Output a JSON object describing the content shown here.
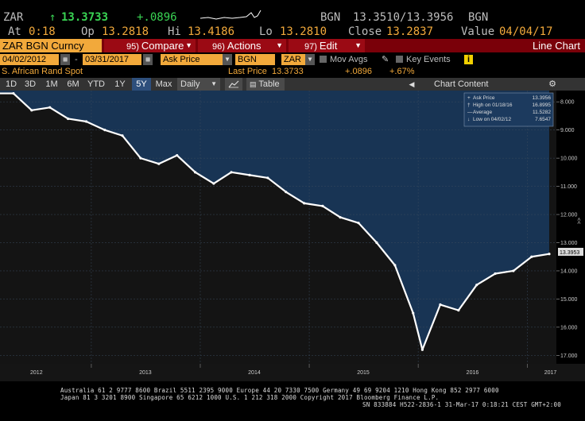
{
  "ticker": {
    "symbol": "ZAR",
    "arrow": "↑",
    "last": "13.3733",
    "change": "+.0896",
    "source_label": "BGN",
    "bid_ask": "13.3510/13.3956",
    "source_label2": "BGN",
    "at_label": "At",
    "at_value": "0:18",
    "op_label": "Op",
    "op_value": "13.2818",
    "hi_label": "Hi",
    "hi_value": "13.4186",
    "lo_label": "Lo",
    "lo_value": "13.2810",
    "close_label": "Close",
    "close_value": "13.2837",
    "value_label": "Value",
    "value_date": "04/04/17"
  },
  "function_bar": {
    "security": "ZAR BGN Curncy",
    "compare_num": "95)",
    "compare_label": "Compare",
    "actions_num": "96)",
    "actions_label": "Actions",
    "edit_num": "97)",
    "edit_label": "Edit",
    "title": "Line Chart"
  },
  "params": {
    "start_date": "04/02/2012",
    "end_date": "03/31/2017",
    "field": "Ask Price",
    "source": "BGN",
    "currency": "ZAR",
    "mov_avgs_label": "Mov Avgs",
    "key_events_label": "Key Events",
    "info_badge": "i"
  },
  "info_row": {
    "security_name": "S. African Rand Spot",
    "last_price_label": "Last Price",
    "last_price": "13.3733",
    "change": "+.0896",
    "pct_change": "+.67%"
  },
  "range_bar": {
    "ranges": [
      "1D",
      "3D",
      "1M",
      "6M",
      "YTD",
      "1Y",
      "5Y",
      "Max"
    ],
    "selected": "5Y",
    "period": "Daily",
    "table_label": "Table",
    "chart_content_label": "Chart Content"
  },
  "colors": {
    "amber": "#f2a93b",
    "red_bar": "#7a0009",
    "chart_upper_bg": "#183454",
    "chart_lower_bg": "#141414",
    "line": "#ffffff",
    "up_green": "#39d353"
  },
  "chart_data": {
    "type": "line",
    "ylabel": "",
    "ylim": [
      17.3,
      7.6
    ],
    "y_inverted": true,
    "y_ticks": [
      "8.000",
      "9.000",
      "10.000",
      "11.000",
      "12.000",
      "13.000",
      "14.000",
      "15.000",
      "16.000",
      "17.000"
    ],
    "x_ticks": [
      "2012",
      "2013",
      "2014",
      "2015",
      "2016",
      "2017"
    ],
    "last_value_tag": "13.3953",
    "side_marker": "<<",
    "legend": [
      {
        "label": "Ask Price",
        "value": "13.3956"
      },
      {
        "label": "High on 01/18/16",
        "value": "16.8995"
      },
      {
        "label": "Average",
        "value": "11.5282"
      },
      {
        "label": "Low on 04/02/12",
        "value": "7.6547"
      }
    ],
    "series": [
      {
        "x": [
          "2012-04",
          "2012-06",
          "2012-08",
          "2012-10",
          "2012-12",
          "2013-02",
          "2013-04",
          "2013-06",
          "2013-08",
          "2013-10",
          "2013-12",
          "2014-02",
          "2014-04",
          "2014-06",
          "2014-08",
          "2014-10",
          "2014-12",
          "2015-02",
          "2015-04",
          "2015-06",
          "2015-08",
          "2015-10",
          "2015-12",
          "2016-01",
          "2016-03",
          "2016-05",
          "2016-07",
          "2016-09",
          "2016-11",
          "2017-01",
          "2017-03"
        ],
        "values": [
          7.7,
          8.3,
          8.2,
          8.6,
          8.7,
          9.0,
          9.2,
          10.0,
          10.2,
          9.9,
          10.5,
          10.9,
          10.5,
          10.6,
          10.7,
          11.2,
          11.6,
          11.7,
          12.1,
          12.3,
          13.0,
          13.8,
          15.5,
          16.8,
          15.2,
          15.4,
          14.5,
          14.1,
          14.0,
          13.5,
          13.4
        ]
      }
    ]
  },
  "footer": {
    "line1": "Australia 61 2 9777 8600 Brazil 5511 2395 9000 Europe 44 20 7330 7500 Germany 49 69 9204 1210 Hong Kong 852 2977 6000",
    "line2": "Japan 81 3 3201 8900        Singapore 65 6212 1000        U.S. 1 212 318 2000        Copyright 2017 Bloomberg Finance L.P.",
    "line3": "SN 833884 H522-2836-1 31-Mar-17  0:18:21 CEST GMT+2:00"
  }
}
